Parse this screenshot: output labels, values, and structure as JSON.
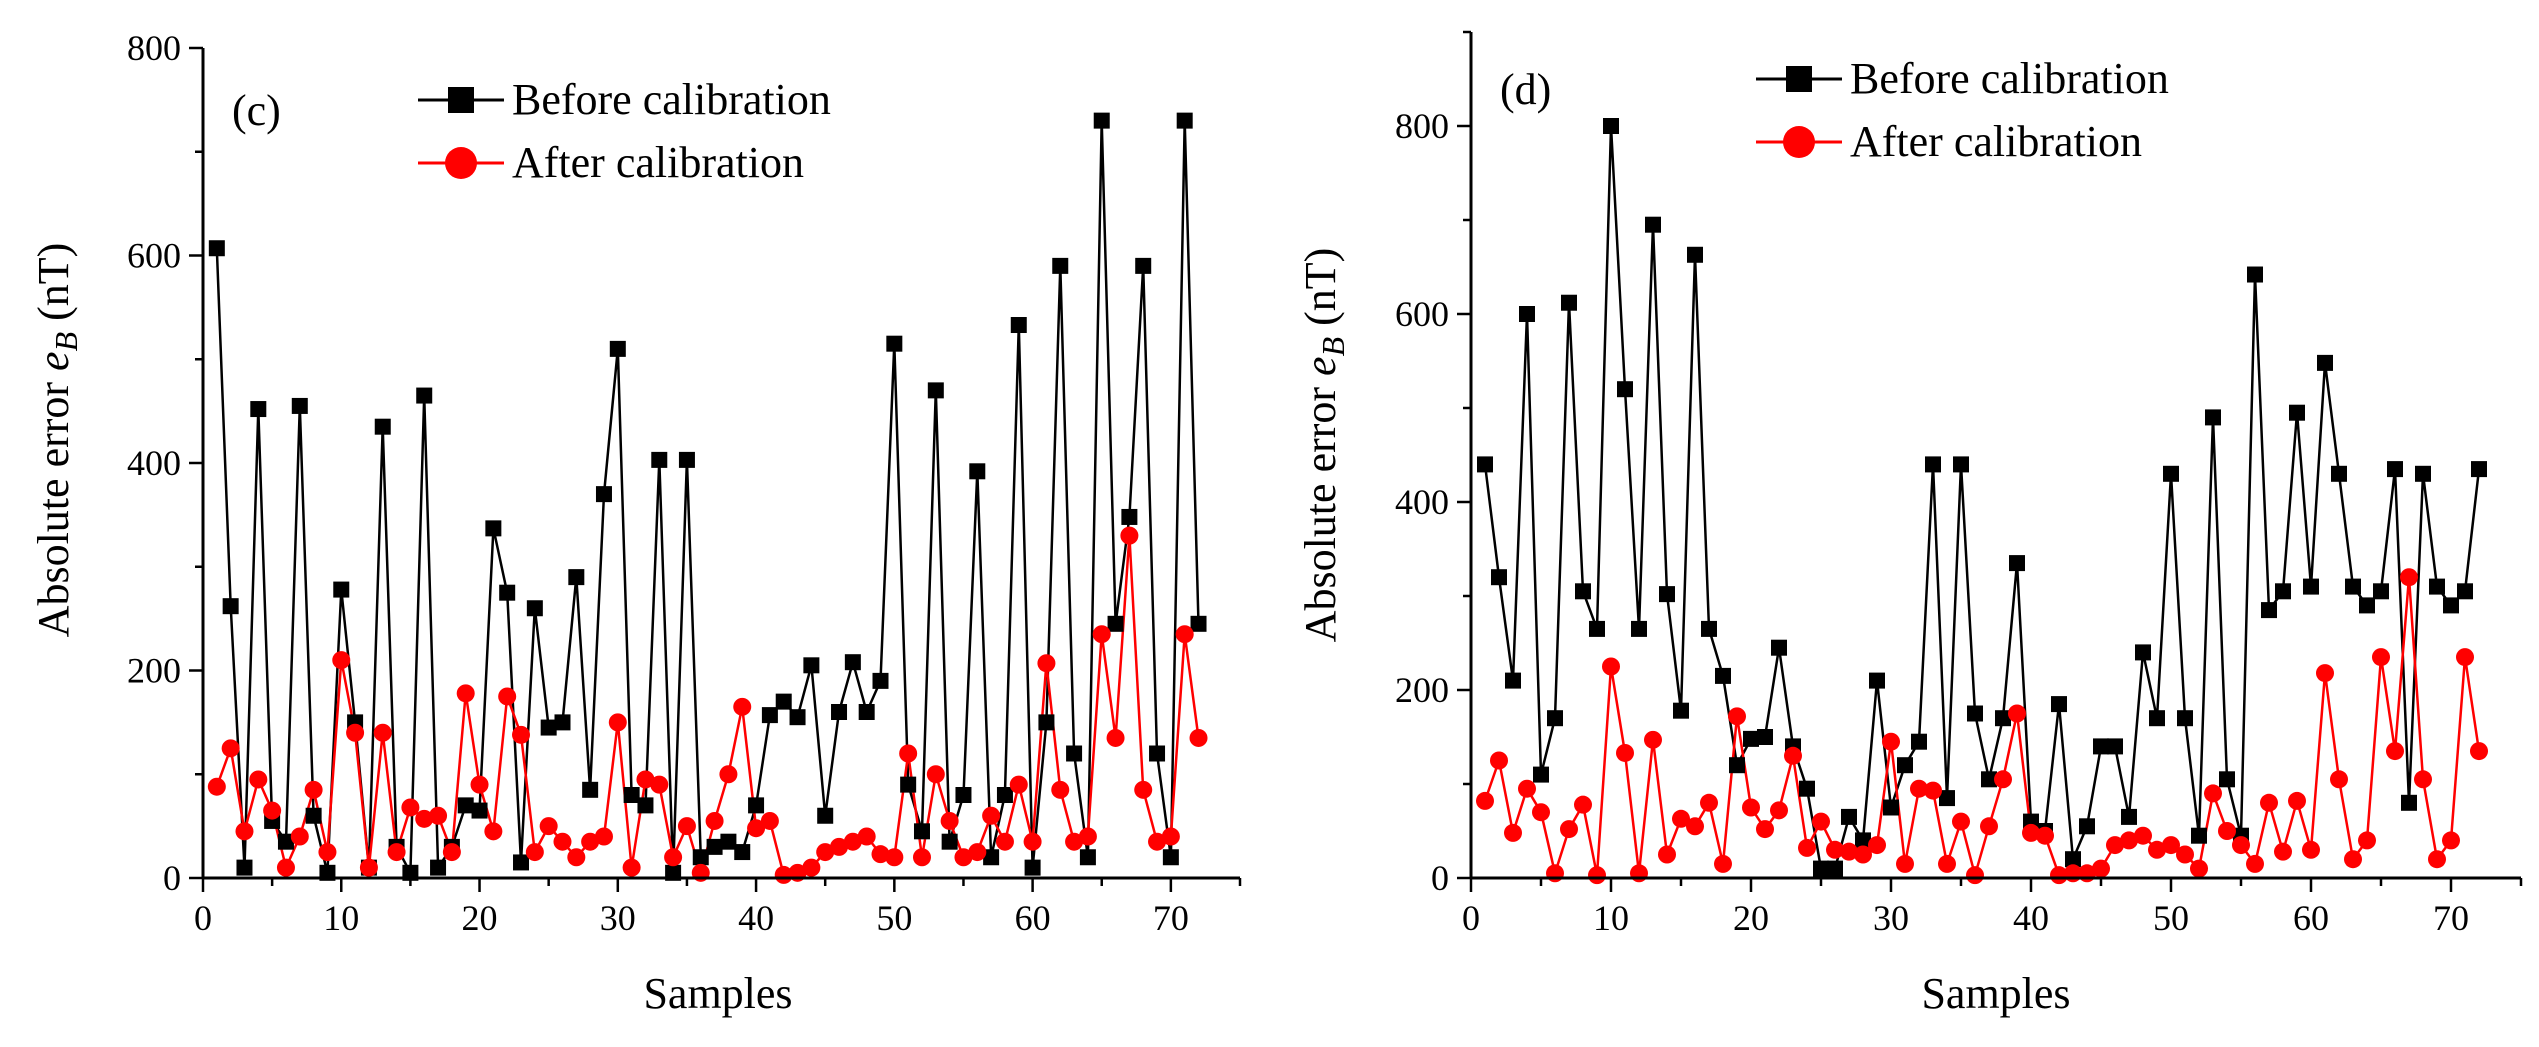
{
  "colors": {
    "before": "#000000",
    "after": "#ff0000"
  },
  "chart_data": [
    {
      "type": "line",
      "panel_label": "(c)",
      "xlabel": "Samples",
      "ylabel_prefix": "Absolute error ",
      "ylabel_var": "e",
      "ylabel_sub": "B",
      "ylabel_suffix": " (nT)",
      "xlim": [
        0,
        75
      ],
      "ylim": [
        0,
        800
      ],
      "xticks": [
        0,
        10,
        20,
        30,
        40,
        50,
        60,
        70
      ],
      "yticks": [
        0,
        200,
        400,
        600,
        800
      ],
      "legend_position": "top",
      "x": [
        1,
        2,
        3,
        4,
        5,
        6,
        7,
        8,
        9,
        10,
        11,
        12,
        13,
        14,
        15,
        16,
        17,
        18,
        19,
        20,
        21,
        22,
        23,
        24,
        25,
        26,
        27,
        28,
        29,
        30,
        31,
        32,
        33,
        34,
        35,
        36,
        37,
        38,
        39,
        40,
        41,
        42,
        43,
        44,
        45,
        46,
        47,
        48,
        49,
        50,
        51,
        52,
        53,
        54,
        55,
        56,
        57,
        58,
        59,
        60,
        61,
        62,
        63,
        64,
        65,
        66,
        67,
        68,
        69,
        70,
        71,
        72
      ],
      "series": [
        {
          "name": "Before calibration",
          "marker": "square",
          "values": [
            607,
            262,
            10,
            452,
            55,
            35,
            455,
            60,
            5,
            278,
            150,
            10,
            435,
            30,
            5,
            465,
            10,
            30,
            70,
            65,
            337,
            275,
            15,
            260,
            145,
            150,
            290,
            85,
            370,
            510,
            80,
            70,
            403,
            5,
            403,
            20,
            30,
            35,
            25,
            70,
            157,
            170,
            155,
            205,
            60,
            160,
            208,
            160,
            190,
            515,
            90,
            45,
            470,
            35,
            80,
            392,
            20,
            80,
            533,
            10,
            150,
            590,
            120,
            20,
            730,
            245,
            348,
            590,
            120,
            20,
            730,
            245
          ]
        },
        {
          "name": "After calibration",
          "marker": "circle",
          "values": [
            88,
            125,
            45,
            95,
            65,
            10,
            40,
            85,
            25,
            210,
            140,
            10,
            140,
            25,
            68,
            57,
            60,
            25,
            178,
            90,
            45,
            175,
            138,
            25,
            50,
            35,
            20,
            35,
            40,
            150,
            10,
            95,
            90,
            20,
            50,
            5,
            55,
            100,
            165,
            48,
            55,
            3,
            5,
            10,
            25,
            30,
            35,
            40,
            23,
            20,
            120,
            20,
            100,
            55,
            20,
            25,
            60,
            35,
            90,
            35,
            207,
            85,
            35,
            40,
            235,
            135,
            330,
            85,
            35,
            40,
            235,
            135
          ]
        }
      ]
    },
    {
      "type": "line",
      "panel_label": "(d)",
      "xlabel": "Samples",
      "ylabel_prefix": "Absolute error ",
      "ylabel_var": "e",
      "ylabel_sub": "B",
      "ylabel_suffix": " (nT)",
      "xlim": [
        0,
        75
      ],
      "ylim": [
        0,
        900
      ],
      "xticks": [
        0,
        10,
        20,
        30,
        40,
        50,
        60,
        70
      ],
      "yticks": [
        0,
        200,
        400,
        600,
        800
      ],
      "legend_position": "top",
      "x": [
        1,
        2,
        3,
        4,
        5,
        6,
        7,
        8,
        9,
        10,
        11,
        12,
        13,
        14,
        15,
        16,
        17,
        18,
        19,
        20,
        21,
        22,
        23,
        24,
        25,
        26,
        27,
        28,
        29,
        30,
        31,
        32,
        33,
        34,
        35,
        36,
        37,
        38,
        39,
        40,
        41,
        42,
        43,
        44,
        45,
        46,
        47,
        48,
        49,
        50,
        51,
        52,
        53,
        54,
        55,
        56,
        57,
        58,
        59,
        60,
        61,
        62,
        63,
        64,
        65,
        66,
        67,
        68,
        69,
        70,
        71,
        72
      ],
      "series": [
        {
          "name": "Before calibration",
          "marker": "square",
          "values": [
            440,
            320,
            210,
            600,
            110,
            170,
            612,
            305,
            265,
            800,
            520,
            265,
            695,
            302,
            178,
            663,
            265,
            215,
            120,
            148,
            150,
            245,
            140,
            95,
            10,
            10,
            65,
            40,
            210,
            75,
            120,
            145,
            440,
            85,
            440,
            175,
            105,
            170,
            335,
            60,
            50,
            185,
            20,
            55,
            140,
            140,
            65,
            240,
            170,
            430,
            170,
            45,
            490,
            105,
            45,
            642,
            285,
            305,
            495,
            310,
            548,
            430,
            310,
            290,
            305,
            435,
            80,
            430,
            310,
            290,
            305,
            435
          ]
        },
        {
          "name": "After calibration",
          "marker": "circle",
          "values": [
            82,
            125,
            48,
            95,
            70,
            5,
            52,
            78,
            3,
            225,
            133,
            5,
            147,
            25,
            63,
            55,
            80,
            15,
            172,
            75,
            52,
            72,
            130,
            32,
            60,
            30,
            28,
            25,
            35,
            145,
            15,
            95,
            93,
            15,
            60,
            3,
            55,
            105,
            175,
            48,
            45,
            3,
            5,
            5,
            10,
            35,
            40,
            45,
            30,
            35,
            25,
            10,
            90,
            50,
            35,
            15,
            80,
            28,
            82,
            30,
            218,
            105,
            20,
            40,
            235,
            135,
            320,
            105,
            20,
            40,
            235,
            135
          ]
        }
      ]
    }
  ]
}
